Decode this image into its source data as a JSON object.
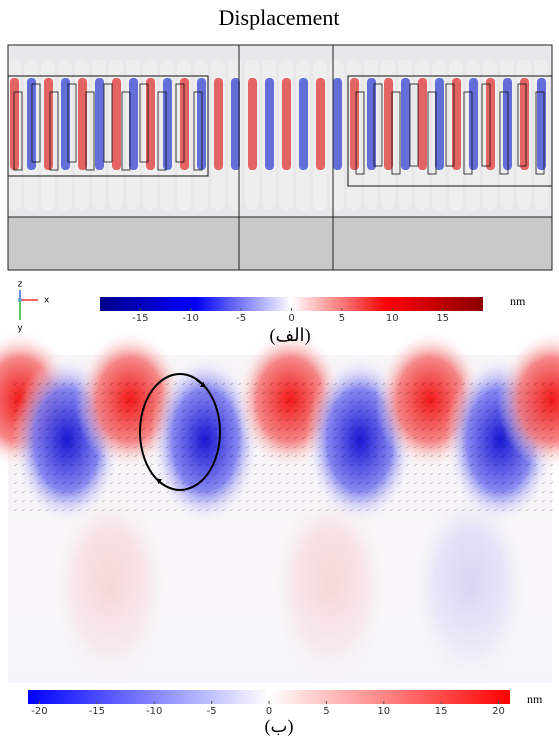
{
  "title": "Displacement",
  "panels": [
    {
      "axes": {
        "z": "z",
        "x": "x",
        "y": "y"
      },
      "colorbar": {
        "lim": [
          -19,
          19
        ],
        "ticks": [
          -15,
          -10,
          -5,
          0,
          5,
          10,
          15
        ],
        "unit": "nm"
      },
      "caption": "(الف)"
    },
    {
      "colorbar": {
        "lim": [
          -21,
          21
        ],
        "ticks": [
          -20,
          -15,
          -10,
          -5,
          0,
          5,
          10,
          15,
          20
        ],
        "unit": "nm"
      },
      "caption": "(ب)"
    }
  ]
}
